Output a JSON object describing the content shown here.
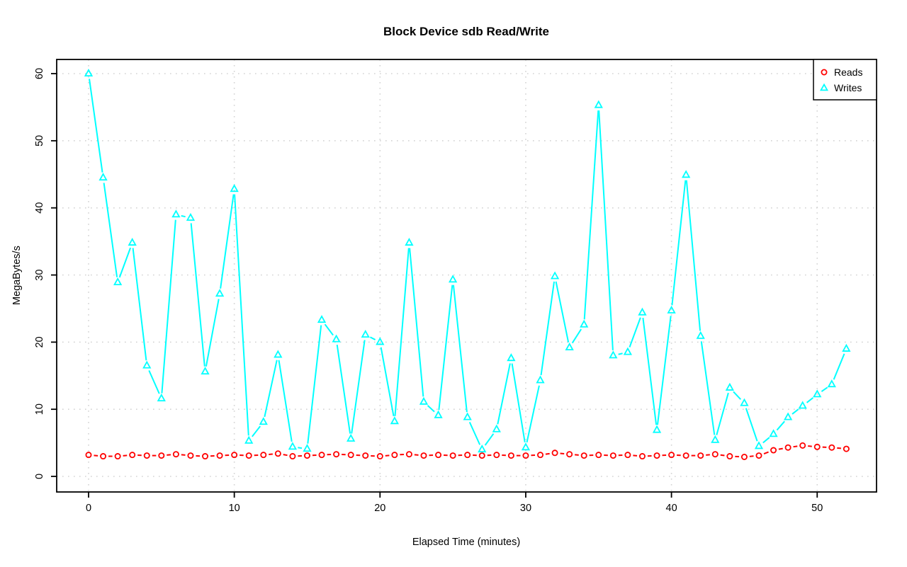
{
  "figure": {
    "background": "#FFFFFF",
    "plot_box_color": "#000000",
    "grid_color": "#D3D3D3"
  },
  "chart_data": {
    "type": "line",
    "title": "Block Device sdb Read/Write",
    "xlabel": "Elapsed Time (minutes)",
    "ylabel": "MegaBytes/s",
    "xlim": [
      0,
      52
    ],
    "ylim": [
      0,
      60
    ],
    "x_ticks": [
      0,
      10,
      20,
      30,
      40,
      50
    ],
    "y_ticks": [
      0,
      10,
      20,
      30,
      40,
      50,
      60
    ],
    "grid": "dotted-both-directions",
    "legend_position": "topright",
    "x": [
      0,
      1,
      2,
      3,
      4,
      5,
      6,
      7,
      8,
      9,
      10,
      11,
      12,
      13,
      14,
      15,
      16,
      17,
      18,
      19,
      20,
      21,
      22,
      23,
      24,
      25,
      26,
      27,
      28,
      29,
      30,
      31,
      32,
      33,
      34,
      35,
      36,
      37,
      38,
      39,
      40,
      41,
      42,
      43,
      44,
      45,
      46,
      47,
      48,
      49,
      50,
      51,
      52
    ],
    "series": [
      {
        "name": "Reads",
        "color": "#FF0000",
        "marker": "circle",
        "line_type": "both-points-and-lines",
        "values": [
          3.2,
          3.0,
          3.0,
          3.2,
          3.1,
          3.1,
          3.3,
          3.1,
          3.0,
          3.1,
          3.2,
          3.1,
          3.2,
          3.4,
          3.0,
          3.1,
          3.2,
          3.3,
          3.2,
          3.1,
          3.0,
          3.2,
          3.3,
          3.1,
          3.2,
          3.1,
          3.2,
          3.1,
          3.2,
          3.1,
          3.1,
          3.2,
          3.5,
          3.3,
          3.1,
          3.2,
          3.1,
          3.2,
          3.0,
          3.1,
          3.2,
          3.1,
          3.1,
          3.3,
          3.0,
          2.9,
          3.1,
          3.9,
          4.3,
          4.6,
          4.4,
          4.3,
          4.1
        ]
      },
      {
        "name": "Writes",
        "color": "#00FFFF",
        "marker": "triangle",
        "line_type": "both-points-and-lines",
        "values": [
          60.0,
          44.5,
          28.9,
          34.8,
          16.5,
          11.6,
          39.0,
          38.5,
          15.6,
          27.2,
          42.8,
          5.3,
          8.1,
          18.1,
          4.4,
          4.1,
          23.3,
          20.4,
          5.6,
          21.1,
          20.0,
          8.2,
          34.8,
          11.1,
          9.1,
          29.3,
          8.8,
          4.0,
          7.0,
          17.6,
          4.3,
          14.3,
          29.8,
          19.2,
          22.6,
          55.3,
          18.0,
          18.5,
          24.4,
          6.9,
          24.7,
          44.9,
          20.9,
          5.4,
          13.2,
          10.9,
          4.5,
          6.3,
          8.8,
          10.5,
          12.2,
          13.7,
          19.0
        ]
      }
    ]
  }
}
